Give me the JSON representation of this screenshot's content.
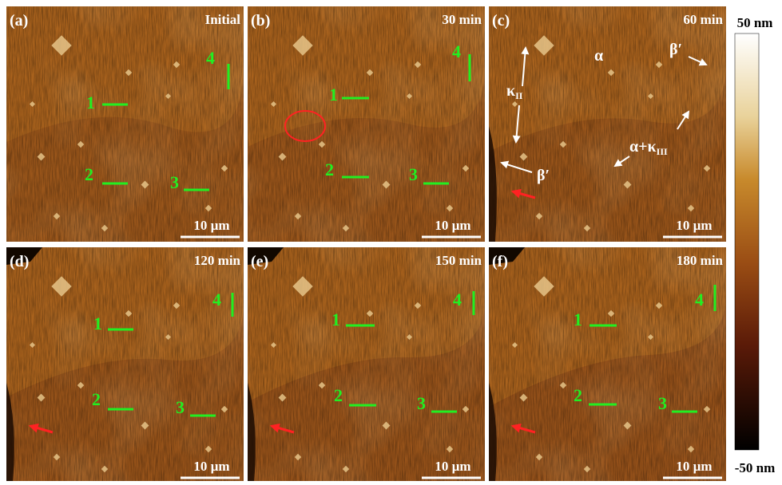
{
  "panels": [
    {
      "label": "(a)",
      "time": "Initial",
      "markers": [
        "1",
        "2",
        "3",
        "4"
      ],
      "scale": "10 µm"
    },
    {
      "label": "(b)",
      "time": "30 min",
      "markers": [
        "1",
        "2",
        "3",
        "4"
      ],
      "scale": "10 µm"
    },
    {
      "label": "(c)",
      "time": "60 min",
      "scale": "10 µm",
      "annotations": [
        {
          "text": "α"
        },
        {
          "text": "β′"
        },
        {
          "text": "κ",
          "sub": "II"
        },
        {
          "text": "α+κ",
          "sub": "III"
        },
        {
          "text": "β′"
        }
      ]
    },
    {
      "label": "(d)",
      "time": "120 min",
      "markers": [
        "1",
        "2",
        "3",
        "4"
      ],
      "scale": "10 µm"
    },
    {
      "label": "(e)",
      "time": "150 min",
      "markers": [
        "1",
        "2",
        "3",
        "4"
      ],
      "scale": "10 µm"
    },
    {
      "label": "(f)",
      "time": "180 min",
      "markers": [
        "1",
        "2",
        "3",
        "4"
      ],
      "scale": "10 µm"
    }
  ],
  "colorbar": {
    "top": "50 nm",
    "bottom": "-50 nm"
  }
}
